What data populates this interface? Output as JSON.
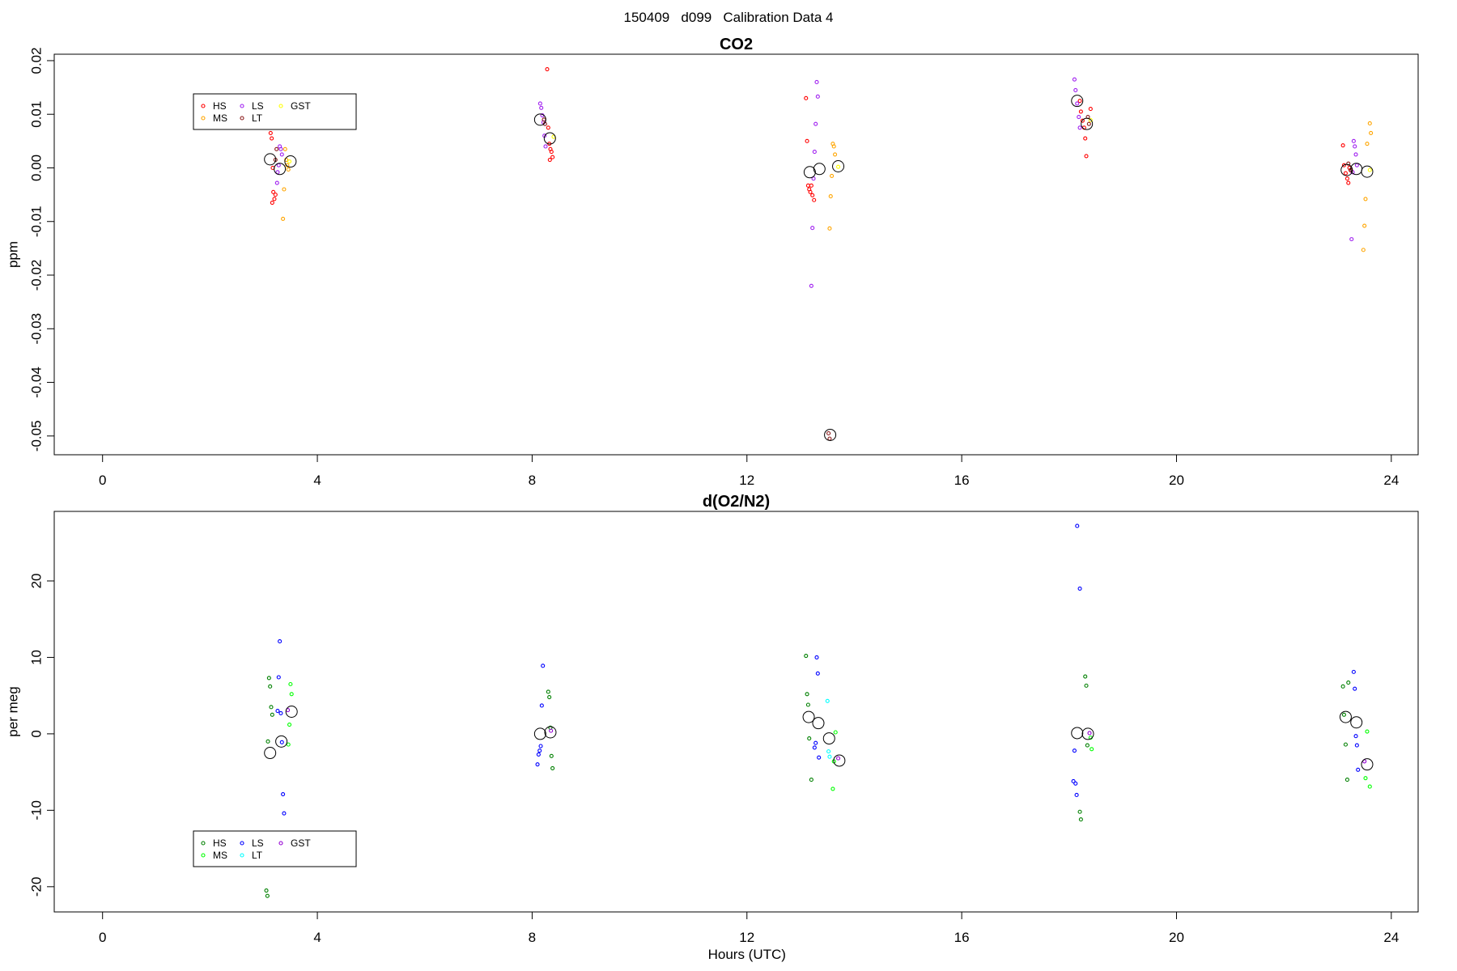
{
  "page_title": "150409   d099   Calibration Data 4",
  "chart_data": [
    {
      "type": "scatter",
      "title": "CO2",
      "xlabel": "",
      "ylabel": "ppm",
      "xlim": [
        -0.9,
        24.5
      ],
      "ylim": [
        -0.0535,
        0.0212
      ],
      "x_ticks": [
        0,
        4,
        8,
        12,
        16,
        20,
        24
      ],
      "y_ticks": [
        -0.05,
        -0.04,
        -0.03,
        -0.02,
        -0.01,
        0.0,
        0.01,
        0.02
      ],
      "y_tick_labels": [
        "-0.05",
        "-0.04",
        "-0.03",
        "-0.02",
        "-0.01",
        "0.00",
        "0.01",
        "0.02"
      ],
      "legend": {
        "position": "top-left",
        "ncol": 3
      },
      "series": [
        {
          "name": "HS",
          "color": "#ff0000",
          "points": [
            [
              3.13,
              0.0065
            ],
            [
              3.15,
              0.0055
            ],
            [
              3.17,
              0.0
            ],
            [
              3.18,
              -0.0045
            ],
            [
              3.2,
              -0.0058
            ],
            [
              3.22,
              -0.005
            ],
            [
              3.16,
              -0.0065
            ],
            [
              8.3,
              0.0075
            ],
            [
              8.32,
              0.0045
            ],
            [
              8.34,
              0.0035
            ],
            [
              8.36,
              0.003
            ],
            [
              8.38,
              0.002
            ],
            [
              8.33,
              0.0015
            ],
            [
              8.28,
              0.0184
            ],
            [
              13.1,
              0.013
            ],
            [
              13.12,
              0.005
            ],
            [
              13.14,
              -0.0033
            ],
            [
              13.16,
              -0.004
            ],
            [
              13.18,
              -0.0045
            ],
            [
              13.2,
              -0.0033
            ],
            [
              13.22,
              -0.0051
            ],
            [
              13.25,
              -0.006
            ],
            [
              18.2,
              0.0125
            ],
            [
              18.22,
              0.0105
            ],
            [
              18.25,
              0.0088
            ],
            [
              18.28,
              0.0075
            ],
            [
              18.3,
              0.0055
            ],
            [
              18.32,
              0.0022
            ],
            [
              18.4,
              0.011
            ],
            [
              23.1,
              0.0042
            ],
            [
              23.12,
              0.0005
            ],
            [
              23.15,
              -0.001
            ],
            [
              23.18,
              -0.002
            ],
            [
              23.2,
              -0.0028
            ],
            [
              23.22,
              0.0
            ],
            [
              23.25,
              -0.0005
            ]
          ]
        },
        {
          "name": "MS",
          "color": "#ffa500",
          "points": [
            [
              3.4,
              0.0035
            ],
            [
              3.42,
              0.0015
            ],
            [
              3.44,
              0.0005
            ],
            [
              3.46,
              -0.0003
            ],
            [
              3.38,
              -0.004
            ],
            [
              3.36,
              -0.0095
            ],
            [
              13.6,
              0.0045
            ],
            [
              13.62,
              0.004
            ],
            [
              13.64,
              0.0025
            ],
            [
              13.58,
              -0.0015
            ],
            [
              13.56,
              -0.0053
            ],
            [
              13.54,
              -0.0113
            ],
            [
              23.6,
              0.0083
            ],
            [
              23.62,
              0.0065
            ],
            [
              23.55,
              0.0045
            ],
            [
              23.52,
              -0.0058
            ],
            [
              23.5,
              -0.0108
            ],
            [
              23.48,
              -0.0153
            ]
          ]
        },
        {
          "name": "LS",
          "color": "#a020f0",
          "points": [
            [
              3.3,
              0.004
            ],
            [
              3.32,
              0.0035
            ],
            [
              3.34,
              0.0025
            ],
            [
              3.28,
              0.0005
            ],
            [
              3.26,
              -0.0008
            ],
            [
              3.25,
              -0.0028
            ],
            [
              8.15,
              0.012
            ],
            [
              8.17,
              0.0112
            ],
            [
              8.19,
              0.0098
            ],
            [
              8.21,
              0.0085
            ],
            [
              8.23,
              0.006
            ],
            [
              8.25,
              0.004
            ],
            [
              13.3,
              0.016
            ],
            [
              13.32,
              0.0133
            ],
            [
              13.28,
              0.0082
            ],
            [
              13.26,
              0.003
            ],
            [
              13.24,
              -0.002
            ],
            [
              13.22,
              -0.0112
            ],
            [
              13.2,
              -0.022
            ],
            [
              18.1,
              0.0165
            ],
            [
              18.12,
              0.0145
            ],
            [
              18.15,
              0.012
            ],
            [
              18.18,
              0.0095
            ],
            [
              18.2,
              0.0075
            ],
            [
              23.3,
              0.005
            ],
            [
              23.32,
              0.004
            ],
            [
              23.34,
              0.0025
            ],
            [
              23.36,
              0.0005
            ],
            [
              23.28,
              -0.0008
            ],
            [
              23.26,
              -0.0133
            ]
          ]
        },
        {
          "name": "LT",
          "color": "#8b1a1a",
          "points": [
            [
              3.24,
              0.0035
            ],
            [
              3.22,
              0.0015
            ],
            [
              8.22,
              0.009
            ],
            [
              8.24,
              0.0082
            ],
            [
              13.52,
              -0.0495
            ],
            [
              13.54,
              -0.0505
            ],
            [
              18.35,
              0.0095
            ],
            [
              18.37,
              0.0082
            ],
            [
              23.2,
              0.0008
            ],
            [
              23.24,
              -0.0004
            ]
          ]
        },
        {
          "name": "GST",
          "color": "#ffff00",
          "points": [
            [
              3.48,
              0.0012
            ],
            [
              8.4,
              0.0058
            ],
            [
              13.7,
              0.0002
            ],
            [
              18.4,
              0.0089
            ],
            [
              23.6,
              -0.0004
            ]
          ]
        },
        {
          "name": "",
          "color": "#000000",
          "marker": "large",
          "points": [
            [
              3.12,
              0.0016
            ],
            [
              3.3,
              -0.0002
            ],
            [
              3.5,
              0.0012
            ],
            [
              8.15,
              0.009
            ],
            [
              8.33,
              0.0055
            ],
            [
              13.17,
              -0.0008
            ],
            [
              13.35,
              -0.0002
            ],
            [
              13.55,
              -0.0498
            ],
            [
              13.7,
              0.0003
            ],
            [
              18.15,
              0.0125
            ],
            [
              18.33,
              0.0082
            ],
            [
              23.17,
              -0.0004
            ],
            [
              23.35,
              -0.0002
            ],
            [
              23.55,
              -0.0007
            ]
          ]
        }
      ]
    },
    {
      "type": "scatter",
      "title": "d(O2/N2)",
      "xlabel": "Hours (UTC)",
      "ylabel": "per meg",
      "xlim": [
        -0.9,
        24.5
      ],
      "ylim": [
        -23.3,
        29.1
      ],
      "x_ticks": [
        0,
        4,
        8,
        12,
        16,
        20,
        24
      ],
      "y_ticks": [
        -20,
        -10,
        0,
        10,
        20
      ],
      "y_tick_labels": [
        "-20",
        "-10",
        "0",
        "10",
        "20"
      ],
      "legend": {
        "position": "bottom-left",
        "ncol": 3
      },
      "series": [
        {
          "name": "HS",
          "color": "#008000",
          "points": [
            [
              3.1,
              7.3
            ],
            [
              3.12,
              6.2
            ],
            [
              3.14,
              3.5
            ],
            [
              3.16,
              2.5
            ],
            [
              3.08,
              -1.0
            ],
            [
              3.05,
              -20.5
            ],
            [
              3.07,
              -21.2
            ],
            [
              8.3,
              5.5
            ],
            [
              8.32,
              4.8
            ],
            [
              8.34,
              0.8
            ],
            [
              8.36,
              -2.9
            ],
            [
              8.38,
              -4.5
            ],
            [
              13.1,
              10.2
            ],
            [
              13.12,
              5.2
            ],
            [
              13.14,
              3.8
            ],
            [
              13.16,
              -0.6
            ],
            [
              13.2,
              -6.0
            ],
            [
              18.2,
              -10.2
            ],
            [
              18.22,
              -11.2
            ],
            [
              18.3,
              7.5
            ],
            [
              18.32,
              6.3
            ],
            [
              18.34,
              -1.5
            ],
            [
              23.1,
              6.2
            ],
            [
              23.12,
              2.5
            ],
            [
              23.15,
              -1.4
            ],
            [
              23.18,
              -6.0
            ],
            [
              23.2,
              6.7
            ]
          ]
        },
        {
          "name": "MS",
          "color": "#00ff00",
          "points": [
            [
              3.5,
              6.5
            ],
            [
              3.52,
              5.2
            ],
            [
              3.48,
              1.2
            ],
            [
              3.46,
              -1.4
            ],
            [
              13.65,
              0.2
            ],
            [
              13.62,
              -3.6
            ],
            [
              13.6,
              -7.2
            ],
            [
              18.4,
              -0.5
            ],
            [
              18.42,
              -2.0
            ],
            [
              23.55,
              0.3
            ],
            [
              23.52,
              -5.8
            ],
            [
              23.6,
              -6.9
            ]
          ]
        },
        {
          "name": "LS",
          "color": "#0000ff",
          "points": [
            [
              3.3,
              12.1
            ],
            [
              3.28,
              7.4
            ],
            [
              3.26,
              3.0
            ],
            [
              3.32,
              2.7
            ],
            [
              3.34,
              -1.1
            ],
            [
              3.36,
              -7.9
            ],
            [
              3.38,
              -10.4
            ],
            [
              8.2,
              8.9
            ],
            [
              8.18,
              3.7
            ],
            [
              8.16,
              -1.6
            ],
            [
              8.14,
              -2.2
            ],
            [
              8.12,
              -2.7
            ],
            [
              8.1,
              -4.0
            ],
            [
              13.3,
              10.0
            ],
            [
              13.32,
              7.9
            ],
            [
              13.28,
              -1.2
            ],
            [
              13.26,
              -1.8
            ],
            [
              13.34,
              -3.1
            ],
            [
              18.15,
              27.2
            ],
            [
              18.2,
              19.0
            ],
            [
              18.1,
              -2.2
            ],
            [
              18.08,
              -6.2
            ],
            [
              18.12,
              -6.5
            ],
            [
              18.14,
              -8.0
            ],
            [
              23.3,
              8.1
            ],
            [
              23.32,
              5.9
            ],
            [
              23.34,
              -0.3
            ],
            [
              23.36,
              -1.5
            ],
            [
              23.38,
              -4.7
            ]
          ]
        },
        {
          "name": "LT",
          "color": "#00ffff",
          "points": [
            [
              13.5,
              4.3
            ],
            [
              13.52,
              -2.3
            ],
            [
              13.54,
              -3.0
            ]
          ]
        },
        {
          "name": "GST",
          "color": "#9400d3",
          "points": [
            [
              3.45,
              3.1
            ],
            [
              8.35,
              0.4
            ],
            [
              13.7,
              -3.2
            ],
            [
              18.38,
              0.1
            ],
            [
              23.5,
              -3.6
            ]
          ]
        },
        {
          "name": "",
          "color": "#000000",
          "marker": "large",
          "points": [
            [
              3.12,
              -2.5
            ],
            [
              3.33,
              -1.0
            ],
            [
              3.52,
              2.9
            ],
            [
              8.15,
              0.0
            ],
            [
              8.34,
              0.2
            ],
            [
              13.15,
              2.2
            ],
            [
              13.33,
              1.4
            ],
            [
              13.53,
              -0.6
            ],
            [
              13.72,
              -3.5
            ],
            [
              18.15,
              0.1
            ],
            [
              18.35,
              0.0
            ],
            [
              23.15,
              2.2
            ],
            [
              23.35,
              1.5
            ],
            [
              23.55,
              -4.0
            ]
          ]
        }
      ]
    }
  ]
}
